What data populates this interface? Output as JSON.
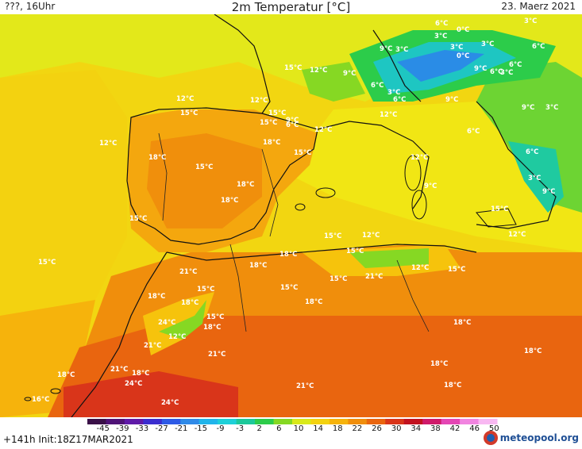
{
  "header": {
    "left_label": "???, 16Uhr",
    "title": "2m Temperatur [°C]",
    "date": "23. Maerz 2021"
  },
  "footer": {
    "run_info": "+141h  Init:18Z17MAR2021",
    "brand": "meteopool.org"
  },
  "legend": {
    "ticks": [
      "-45",
      "-39",
      "-33",
      "-27",
      "-21",
      "-15",
      "-9",
      "-3",
      "2",
      "6",
      "10",
      "14",
      "18",
      "22",
      "26",
      "30",
      "34",
      "38",
      "42",
      "46",
      "50"
    ],
    "colors": [
      "#3a1048",
      "#4f1377",
      "#5f1aa8",
      "#3a2dcf",
      "#2d5ae6",
      "#2f8ae8",
      "#20b4ea",
      "#1dd0d8",
      "#1cc89a",
      "#2ccc4a",
      "#86d823",
      "#d9e91a",
      "#f3d210",
      "#f6b30c",
      "#f08e0c",
      "#e9650f",
      "#d9351a",
      "#c2121f",
      "#cf1a6a",
      "#e446b4",
      "#f184e0",
      "#f8b8f2"
    ]
  },
  "labels": [
    {
      "text": "6°C"
    },
    {
      "text": "0°C"
    },
    {
      "text": "3°C"
    },
    {
      "text": "3°C"
    },
    {
      "text": "0°C"
    },
    {
      "text": "3°C"
    },
    {
      "text": "9°C"
    },
    {
      "text": "3°C"
    },
    {
      "text": "3°C"
    },
    {
      "text": "6°C"
    },
    {
      "text": "6°C"
    },
    {
      "text": "9°C"
    },
    {
      "text": "6°C"
    },
    {
      "text": "3°C"
    },
    {
      "text": "9°C"
    },
    {
      "text": "3°C"
    },
    {
      "text": "15°C"
    },
    {
      "text": "12°C"
    },
    {
      "text": "9°C"
    },
    {
      "text": "6°C"
    },
    {
      "text": "3°C"
    },
    {
      "text": "6°C"
    },
    {
      "text": "9°C"
    },
    {
      "text": "12°C"
    },
    {
      "text": "12°C"
    },
    {
      "text": "15°C"
    },
    {
      "text": "12°C"
    },
    {
      "text": "15°C"
    },
    {
      "text": "15°C"
    },
    {
      "text": "9°C"
    },
    {
      "text": "6°C"
    },
    {
      "text": "12°C"
    },
    {
      "text": "12°C"
    },
    {
      "text": "18°C"
    },
    {
      "text": "18°C"
    },
    {
      "text": "15°C"
    },
    {
      "text": "15°C"
    },
    {
      "text": "18°C"
    },
    {
      "text": "12°C"
    },
    {
      "text": "6°C"
    },
    {
      "text": "6°C"
    },
    {
      "text": "3°C"
    },
    {
      "text": "9°C"
    },
    {
      "text": "18°C"
    },
    {
      "text": "15°C"
    },
    {
      "text": "9°C"
    },
    {
      "text": "12°C"
    },
    {
      "text": "15°C"
    },
    {
      "text": "15°C"
    },
    {
      "text": "12°C"
    },
    {
      "text": "15°C"
    },
    {
      "text": "18°C"
    },
    {
      "text": "18°C"
    },
    {
      "text": "12°C"
    },
    {
      "text": "15°C"
    },
    {
      "text": "21°C"
    },
    {
      "text": "15°C"
    },
    {
      "text": "15°C"
    },
    {
      "text": "21°C"
    },
    {
      "text": "18°C"
    },
    {
      "text": "18°C"
    },
    {
      "text": "15°C"
    },
    {
      "text": "18°C"
    },
    {
      "text": "15°C"
    },
    {
      "text": "15°C"
    },
    {
      "text": "24°C"
    },
    {
      "text": "18°C"
    },
    {
      "text": "12°C"
    },
    {
      "text": "21°C"
    },
    {
      "text": "21°C"
    },
    {
      "text": "18°C"
    },
    {
      "text": "18°C"
    },
    {
      "text": "21°C"
    },
    {
      "text": "18°C"
    },
    {
      "text": "24°C"
    },
    {
      "text": "18°C"
    },
    {
      "text": "18°C"
    },
    {
      "text": "18°C"
    },
    {
      "text": "21°C"
    },
    {
      "text": "16°C"
    },
    {
      "text": "24°C"
    }
  ]
}
